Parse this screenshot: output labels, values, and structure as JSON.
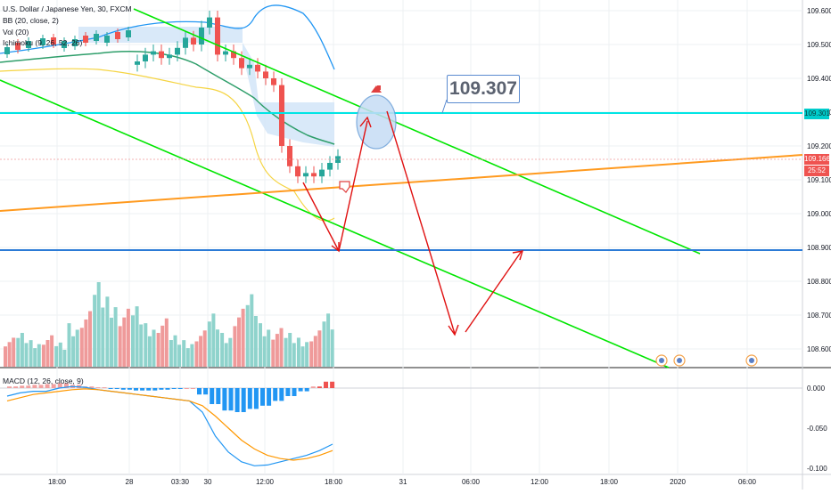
{
  "legend": {
    "symbol": "U.S. Dollar / Japanese Yen, 30, FXCM",
    "bb": "BB (20, close, 2)",
    "vol": "Vol (20)",
    "ichimoku": "Ichimoku (9, 26, 52, 26)",
    "macd": "MACD (12, 26, close, 9)"
  },
  "annotation": {
    "price_box": "109.307"
  },
  "price_labels": {
    "hline": "109.301",
    "last": "109.166",
    "countdown": "25:52"
  },
  "colors": {
    "bull": "#26a69a",
    "bear": "#ef5350",
    "bb_band": "#2196f3",
    "cloud": "#cfe4f7",
    "green_line": "#00e600",
    "orange_line": "#ff9a1f",
    "cyan_line": "#00e5e5",
    "blue_line": "#2c7bd6",
    "red_arrow": "#e01010",
    "macd_line": "#2196f3",
    "signal_line": "#ff9800"
  },
  "chart_data": [
    {
      "type": "line",
      "title": "U.S. Dollar / Japanese Yen, 30, FXCM",
      "x_tick_labels": [
        "18:00",
        "28",
        "03:30",
        "30",
        "12:00",
        "18:00",
        "31",
        "06:00",
        "12:00",
        "18:00",
        "2020",
        "06:00"
      ],
      "y_tick_labels": [
        "109.600",
        "109.500",
        "109.400",
        "109.300",
        "109.200",
        "109.100",
        "109.000",
        "108.900",
        "108.800",
        "108.700",
        "108.600"
      ],
      "ylim": [
        108.55,
        109.62
      ],
      "series": [
        {
          "name": "Close (approx.)",
          "values": [
            109.45,
            109.47,
            109.48,
            109.46,
            109.47,
            109.49,
            109.52,
            109.5,
            109.55,
            109.58,
            109.47,
            109.48,
            109.46,
            109.43,
            109.44,
            109.42,
            109.4,
            109.38,
            109.2,
            109.14,
            109.11,
            109.12,
            109.11,
            109.13,
            109.15,
            109.17
          ]
        }
      ],
      "horizontal_lines": [
        109.301,
        108.905
      ],
      "price_annotation": 109.307
    },
    {
      "type": "bar",
      "title": "Vol (20)",
      "values": [
        12,
        14,
        11,
        13,
        10,
        18,
        23,
        35,
        29,
        24,
        25,
        18,
        20,
        13,
        11,
        15,
        22,
        14,
        24,
        30,
        18,
        16,
        14,
        12,
        15,
        22
      ]
    },
    {
      "type": "bar",
      "title": "MACD (12, 26, close, 9)",
      "y_tick_labels": [
        "0.000",
        "-0.050",
        "-0.100"
      ],
      "ylim": [
        -0.105,
        0.015
      ],
      "series": [
        {
          "name": "Histogram",
          "values": [
            0.002,
            0.003,
            0.004,
            0.005,
            0.006,
            0.004,
            0.002,
            0.001,
            -0.001,
            -0.002,
            -0.003,
            -0.003,
            -0.002,
            -0.001,
            0.0,
            -0.008,
            -0.02,
            -0.028,
            -0.03,
            -0.026,
            -0.022,
            -0.016,
            -0.01,
            -0.004,
            0.002,
            0.008
          ]
        },
        {
          "name": "MACD",
          "values": [
            -0.01,
            -0.006,
            -0.004,
            -0.004,
            0.0,
            0.002,
            0.001,
            -0.002,
            -0.004,
            -0.006,
            -0.008,
            -0.01,
            -0.012,
            -0.014,
            -0.016,
            -0.03,
            -0.06,
            -0.08,
            -0.092,
            -0.097,
            -0.096,
            -0.092,
            -0.088,
            -0.084,
            -0.078,
            -0.07
          ]
        },
        {
          "name": "Signal",
          "values": [
            -0.016,
            -0.012,
            -0.008,
            -0.006,
            -0.004,
            -0.002,
            -0.001,
            -0.002,
            -0.004,
            -0.006,
            -0.008,
            -0.01,
            -0.012,
            -0.014,
            -0.016,
            -0.022,
            -0.035,
            -0.05,
            -0.065,
            -0.076,
            -0.084,
            -0.088,
            -0.09,
            -0.088,
            -0.084,
            -0.078
          ]
        }
      ]
    }
  ]
}
